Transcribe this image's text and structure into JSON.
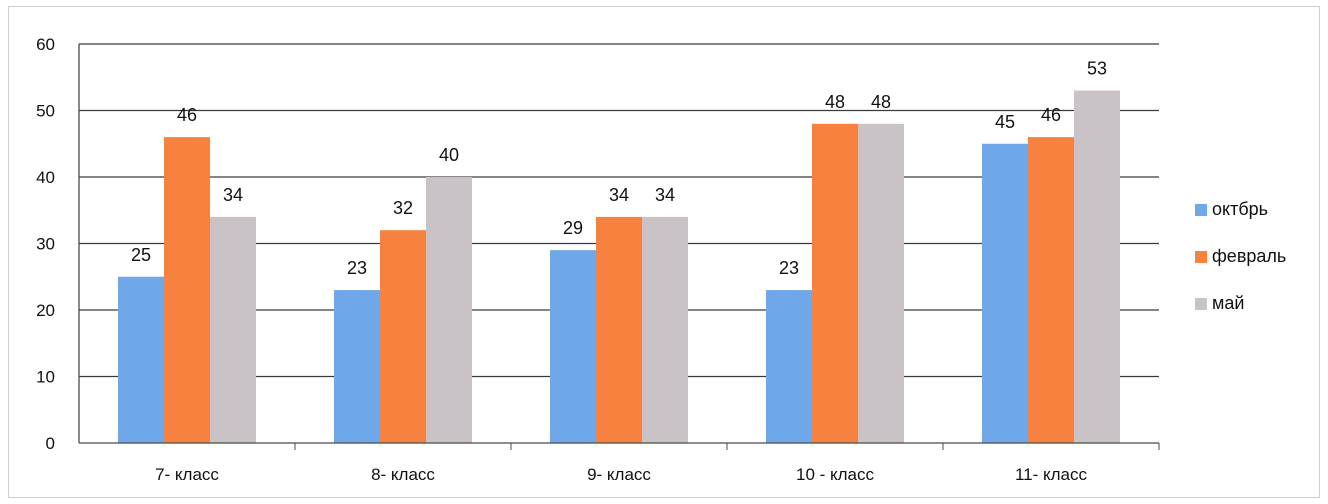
{
  "chart_data": {
    "type": "bar",
    "categories": [
      "7- класс",
      "8- класс",
      "9- класс",
      "10 - класс",
      "11- класс"
    ],
    "series": [
      {
        "name": "октбрь",
        "values": [
          25,
          23,
          29,
          23,
          45
        ],
        "color": "#6fa8e8"
      },
      {
        "name": "февраль",
        "values": [
          46,
          32,
          34,
          48,
          46
        ],
        "color": "#f7813e"
      },
      {
        "name": "май",
        "values": [
          34,
          40,
          34,
          48,
          53
        ],
        "color": "#c9c3c7"
      }
    ],
    "ylim": [
      0,
      60
    ],
    "yticks": [
      0,
      10,
      20,
      30,
      40,
      50,
      60
    ],
    "grid": true,
    "legend_position": "right",
    "data_labels": true
  }
}
